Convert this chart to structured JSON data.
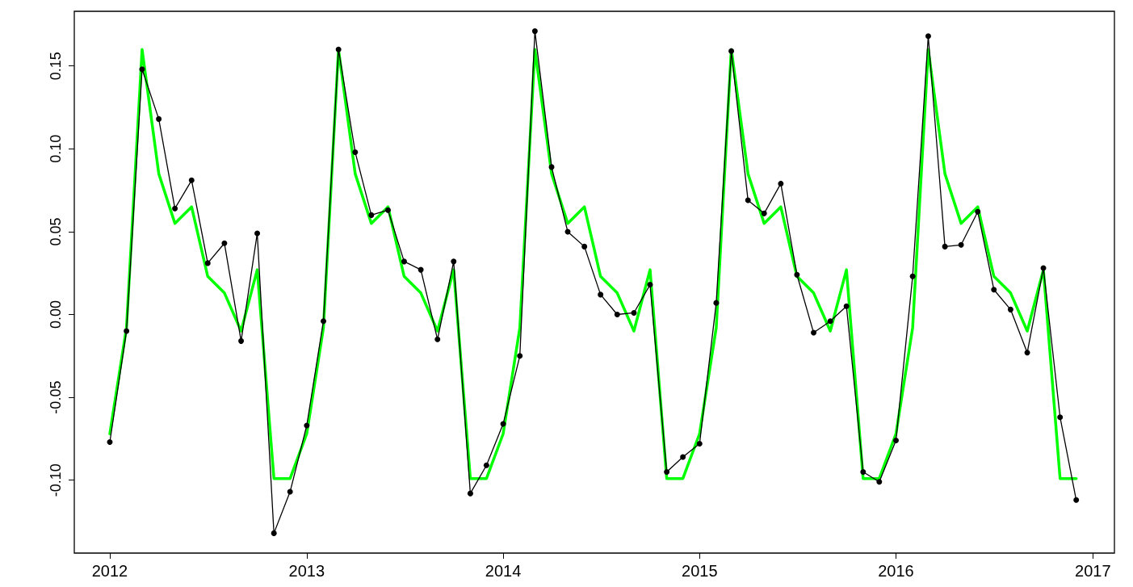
{
  "chart_data": {
    "type": "line",
    "x": [
      "2012-01",
      "2012-02",
      "2012-03",
      "2012-04",
      "2012-05",
      "2012-06",
      "2012-07",
      "2012-08",
      "2012-09",
      "2012-10",
      "2012-11",
      "2012-12",
      "2013-01",
      "2013-02",
      "2013-03",
      "2013-04",
      "2013-05",
      "2013-06",
      "2013-07",
      "2013-08",
      "2013-09",
      "2013-10",
      "2013-11",
      "2013-12",
      "2014-01",
      "2014-02",
      "2014-03",
      "2014-04",
      "2014-05",
      "2014-06",
      "2014-07",
      "2014-08",
      "2014-09",
      "2014-10",
      "2014-11",
      "2014-12",
      "2015-01",
      "2015-02",
      "2015-03",
      "2015-04",
      "2015-05",
      "2015-06",
      "2015-07",
      "2015-08",
      "2015-09",
      "2015-10",
      "2015-11",
      "2015-12",
      "2016-01",
      "2016-02",
      "2016-03",
      "2016-04",
      "2016-05",
      "2016-06",
      "2016-07",
      "2016-08",
      "2016-09",
      "2016-10",
      "2016-11",
      "2016-12"
    ],
    "series": [
      {
        "color": "#000000",
        "marker": "circle",
        "values": [
          -0.077,
          -0.01,
          0.148,
          0.118,
          0.064,
          0.081,
          0.031,
          0.043,
          -0.016,
          0.049,
          -0.132,
          -0.107,
          -0.067,
          -0.004,
          0.16,
          0.098,
          0.06,
          0.063,
          0.032,
          0.027,
          -0.015,
          0.032,
          -0.108,
          -0.091,
          -0.066,
          -0.025,
          0.171,
          0.089,
          0.05,
          0.041,
          0.012,
          0.0,
          0.001,
          0.018,
          -0.095,
          -0.086,
          -0.078,
          0.007,
          0.159,
          0.069,
          0.061,
          0.079,
          0.024,
          -0.011,
          -0.004,
          0.005,
          -0.095,
          -0.101,
          -0.076,
          0.023,
          0.168,
          0.041,
          0.042,
          0.062,
          0.015,
          0.003,
          -0.023,
          0.028,
          -0.062,
          -0.112
        ]
      },
      {
        "color": "#00ff00",
        "marker": "none",
        "values": [
          -0.072,
          -0.008,
          0.16,
          0.085,
          0.055,
          0.065,
          0.023,
          0.013,
          -0.01,
          0.027,
          -0.099,
          -0.099,
          -0.072,
          -0.008,
          0.16,
          0.085,
          0.055,
          0.065,
          0.023,
          0.013,
          -0.01,
          0.027,
          -0.099,
          -0.099,
          -0.072,
          -0.008,
          0.16,
          0.085,
          0.055,
          0.065,
          0.023,
          0.013,
          -0.01,
          0.027,
          -0.099,
          -0.099,
          -0.072,
          -0.008,
          0.16,
          0.085,
          0.055,
          0.065,
          0.023,
          0.013,
          -0.01,
          0.027,
          -0.099,
          -0.099,
          -0.072,
          -0.008,
          0.16,
          0.085,
          0.055,
          0.065,
          0.023,
          0.013,
          -0.01,
          0.027,
          -0.099,
          -0.099
        ]
      }
    ],
    "xlim": [
      "2011-10-27",
      "2017-02-10"
    ],
    "xticks": [
      "2012",
      "2013",
      "2014",
      "2015",
      "2016",
      "2017"
    ],
    "ylim": [
      -0.144,
      0.183
    ],
    "yticks": [
      {
        "value": -0.1,
        "label": "-0.10"
      },
      {
        "value": -0.05,
        "label": "-0.05"
      },
      {
        "value": 0,
        "label": "0.00"
      },
      {
        "value": 0.05,
        "label": "0.05"
      },
      {
        "value": 0.1,
        "label": "0.10"
      },
      {
        "value": 0.15,
        "label": "0.15"
      }
    ],
    "grid": false
  }
}
